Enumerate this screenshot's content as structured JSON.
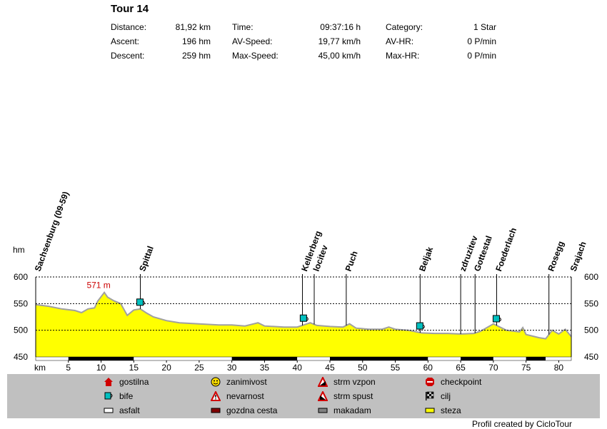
{
  "header": {
    "title": "Tour 14",
    "stats": [
      {
        "label": "Distance:",
        "value": "81,92 km"
      },
      {
        "label": "Ascent:",
        "value": "196 hm"
      },
      {
        "label": "Descent:",
        "value": "259 hm"
      },
      {
        "label": "Time:",
        "value": "09:37:16 h"
      },
      {
        "label": "AV-Speed:",
        "value": "19,77 km/h"
      },
      {
        "label": "Max-Speed:",
        "value": "45,00 km/h"
      },
      {
        "label": "Category:",
        "value": "1 Star"
      },
      {
        "label": "AV-HR:",
        "value": "0 P/min"
      },
      {
        "label": "Max-HR:",
        "value": "0 P/min"
      }
    ]
  },
  "chart_data": {
    "type": "area",
    "ylabel": "hm",
    "xlabel": "km",
    "xlim": [
      0,
      81.92
    ],
    "ylim": [
      450,
      600
    ],
    "x_ticks": [
      5,
      10,
      15,
      20,
      25,
      30,
      35,
      40,
      45,
      50,
      55,
      60,
      65,
      70,
      75,
      80
    ],
    "y_ticks": [
      450,
      500,
      550,
      600
    ],
    "grid_lines": [
      500,
      550,
      600
    ],
    "max_label": "571 m",
    "max_point": {
      "x": 10.5,
      "y": 571
    },
    "profile": [
      [
        0,
        548
      ],
      [
        2,
        545
      ],
      [
        4,
        540
      ],
      [
        6,
        537
      ],
      [
        7,
        533
      ],
      [
        8,
        540
      ],
      [
        9,
        542
      ],
      [
        9.5,
        555
      ],
      [
        10.5,
        571
      ],
      [
        11,
        562
      ],
      [
        12,
        555
      ],
      [
        13,
        550
      ],
      [
        14,
        528
      ],
      [
        15,
        538
      ],
      [
        16,
        540
      ],
      [
        17,
        532
      ],
      [
        18,
        525
      ],
      [
        20,
        518
      ],
      [
        22,
        514
      ],
      [
        25,
        512
      ],
      [
        28,
        510
      ],
      [
        30,
        510
      ],
      [
        32,
        508
      ],
      [
        34,
        514
      ],
      [
        35,
        508
      ],
      [
        38,
        506
      ],
      [
        40,
        506
      ],
      [
        41,
        510
      ],
      [
        42,
        514
      ],
      [
        43,
        509
      ],
      [
        45,
        507
      ],
      [
        47,
        506
      ],
      [
        48,
        512
      ],
      [
        49,
        504
      ],
      [
        51,
        502
      ],
      [
        53,
        502
      ],
      [
        54,
        506
      ],
      [
        55,
        502
      ],
      [
        57,
        500
      ],
      [
        59,
        495
      ],
      [
        61,
        494
      ],
      [
        63,
        494
      ],
      [
        65,
        493
      ],
      [
        67,
        494
      ],
      [
        68,
        498
      ],
      [
        70,
        512
      ],
      [
        71,
        506
      ],
      [
        72,
        500
      ],
      [
        74,
        497
      ],
      [
        74.5,
        505
      ],
      [
        75,
        492
      ],
      [
        77,
        486
      ],
      [
        78,
        484
      ],
      [
        79,
        500
      ],
      [
        80,
        493
      ],
      [
        81,
        502
      ],
      [
        81.92,
        488
      ]
    ],
    "road_segments": [
      [
        0,
        5,
        "asfalt"
      ],
      [
        5,
        15,
        "gozdna cesta"
      ],
      [
        15,
        30,
        "asfalt"
      ],
      [
        30,
        40,
        "gozdna cesta"
      ],
      [
        40,
        45,
        "asfalt"
      ],
      [
        45,
        60,
        "gozdna cesta"
      ],
      [
        60,
        65,
        "asfalt"
      ],
      [
        65,
        70,
        "gozdna cesta"
      ],
      [
        70,
        75,
        "asfalt"
      ],
      [
        75,
        78,
        "gozdna cesta"
      ],
      [
        78,
        81.92,
        "asfalt"
      ]
    ],
    "waypoints": [
      {
        "name": "Sachsenburg (09-59)",
        "x": 0
      },
      {
        "name": "Spittal",
        "x": 16
      },
      {
        "name": "Kellerberg",
        "x": 40.8
      },
      {
        "name": "locitev",
        "x": 42.6
      },
      {
        "name": "Puch",
        "x": 47.5
      },
      {
        "name": "Beljak",
        "x": 58.8
      },
      {
        "name": "zdruzitev",
        "x": 65
      },
      {
        "name": "Gottestal",
        "x": 67.2
      },
      {
        "name": "Foederlach",
        "x": 70.5
      },
      {
        "name": "Rosegg",
        "x": 78.5
      },
      {
        "name": "Srajach",
        "x": 81.92
      }
    ],
    "bife_markers": [
      16,
      41,
      58.8,
      70.5
    ]
  },
  "legend": {
    "items": [
      {
        "label": "gostilna",
        "icon": "house-icon"
      },
      {
        "label": "bife",
        "icon": "cup-icon"
      },
      {
        "label": "asfalt",
        "icon": "surface-asfalt-icon"
      },
      {
        "label": "zanimivost",
        "icon": "smiley-icon"
      },
      {
        "label": "nevarnost",
        "icon": "warning-icon"
      },
      {
        "label": "gozdna cesta",
        "icon": "surface-forest-icon"
      },
      {
        "label": "strm vzpon",
        "icon": "steep-climb-icon"
      },
      {
        "label": "strm spust",
        "icon": "steep-descent-icon"
      },
      {
        "label": "makadam",
        "icon": "surface-gravel-icon"
      },
      {
        "label": "checkpoint",
        "icon": "stop-icon"
      },
      {
        "label": "cilj",
        "icon": "finish-flag-icon"
      },
      {
        "label": "steza",
        "icon": "surface-path-icon"
      }
    ]
  },
  "footer": {
    "credit": "Profil created by CicloTour"
  },
  "colors": {
    "area": "#ffff00",
    "area_stroke": "#a0a0a0",
    "legend_bg": "#c0c0c0",
    "max_label": "#cc0000",
    "bife": "#00c0c0"
  }
}
